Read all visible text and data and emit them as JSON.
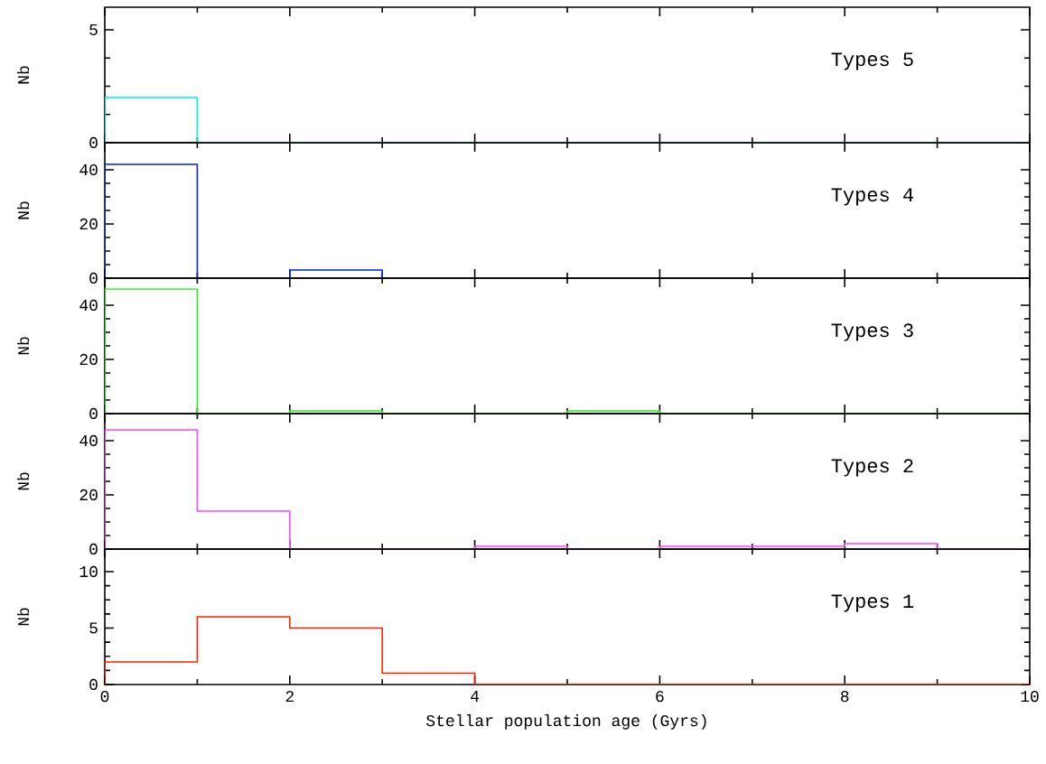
{
  "chart_data": [
    {
      "type": "histogram",
      "bins": [
        0,
        1,
        2,
        3,
        4,
        5,
        6,
        7,
        8,
        9,
        10
      ],
      "values": [
        2,
        0,
        0,
        0,
        0,
        0,
        0,
        0,
        0,
        0
      ],
      "color": "#00eeee",
      "ylabel": "Nb",
      "annotations": [
        "Types 5"
      ],
      "xlim": [
        0,
        10
      ],
      "xticks": [
        0,
        2,
        4,
        6,
        8,
        10
      ],
      "ylim": [
        0,
        6
      ],
      "yticks": [
        0,
        5
      ],
      "tick_labels": "y"
    },
    {
      "type": "histogram",
      "bins": [
        0,
        1,
        2,
        3,
        4,
        5,
        6,
        7,
        8,
        9,
        10
      ],
      "values": [
        42,
        0,
        3,
        0,
        0,
        0,
        0,
        0,
        0,
        0
      ],
      "color": "#0022ee",
      "ylabel": "Nb",
      "annotations": [
        "Types 4"
      ],
      "xlim": [
        0,
        10
      ],
      "xticks": [
        0,
        2,
        4,
        6,
        8,
        10
      ],
      "ylim": [
        0,
        50
      ],
      "yticks": [
        0,
        20,
        40
      ],
      "tick_labels": "y"
    },
    {
      "type": "histogram",
      "bins": [
        0,
        1,
        2,
        3,
        4,
        5,
        6,
        7,
        8,
        9,
        10
      ],
      "values": [
        46,
        0,
        1,
        0,
        0,
        1,
        0,
        0,
        0,
        0
      ],
      "color": "#22ee22",
      "ylabel": "Nb",
      "annotations": [
        "Types 3"
      ],
      "xlim": [
        0,
        10
      ],
      "xticks": [
        0,
        2,
        4,
        6,
        8,
        10
      ],
      "ylim": [
        0,
        50
      ],
      "yticks": [
        0,
        20,
        40
      ],
      "tick_labels": "y"
    },
    {
      "type": "histogram",
      "bins": [
        0,
        1,
        2,
        3,
        4,
        5,
        6,
        7,
        8,
        9,
        10
      ],
      "values": [
        44,
        14,
        0,
        0,
        1,
        0,
        1,
        1,
        2,
        0
      ],
      "color": "#ff44ff",
      "ylabel": "Nb",
      "annotations": [
        "Types 2"
      ],
      "xlim": [
        0,
        10
      ],
      "xticks": [
        0,
        2,
        4,
        6,
        8,
        10
      ],
      "ylim": [
        0,
        50
      ],
      "yticks": [
        0,
        20,
        40
      ],
      "tick_labels": "y"
    },
    {
      "type": "histogram",
      "bins": [
        0,
        1,
        2,
        3,
        4,
        5,
        6,
        7,
        8,
        9,
        10
      ],
      "values": [
        2,
        6,
        5,
        1,
        0,
        0,
        0,
        0,
        0,
        0
      ],
      "color": "#ff2200",
      "ylabel": "Nb",
      "xlabel": "Stellar population age (Gyrs)",
      "annotations": [
        "Types 1"
      ],
      "xlim": [
        0,
        10
      ],
      "xticks": [
        0,
        2,
        4,
        6,
        8,
        10
      ],
      "ylim": [
        0,
        12
      ],
      "yticks": [
        0,
        5,
        10
      ]
    }
  ]
}
